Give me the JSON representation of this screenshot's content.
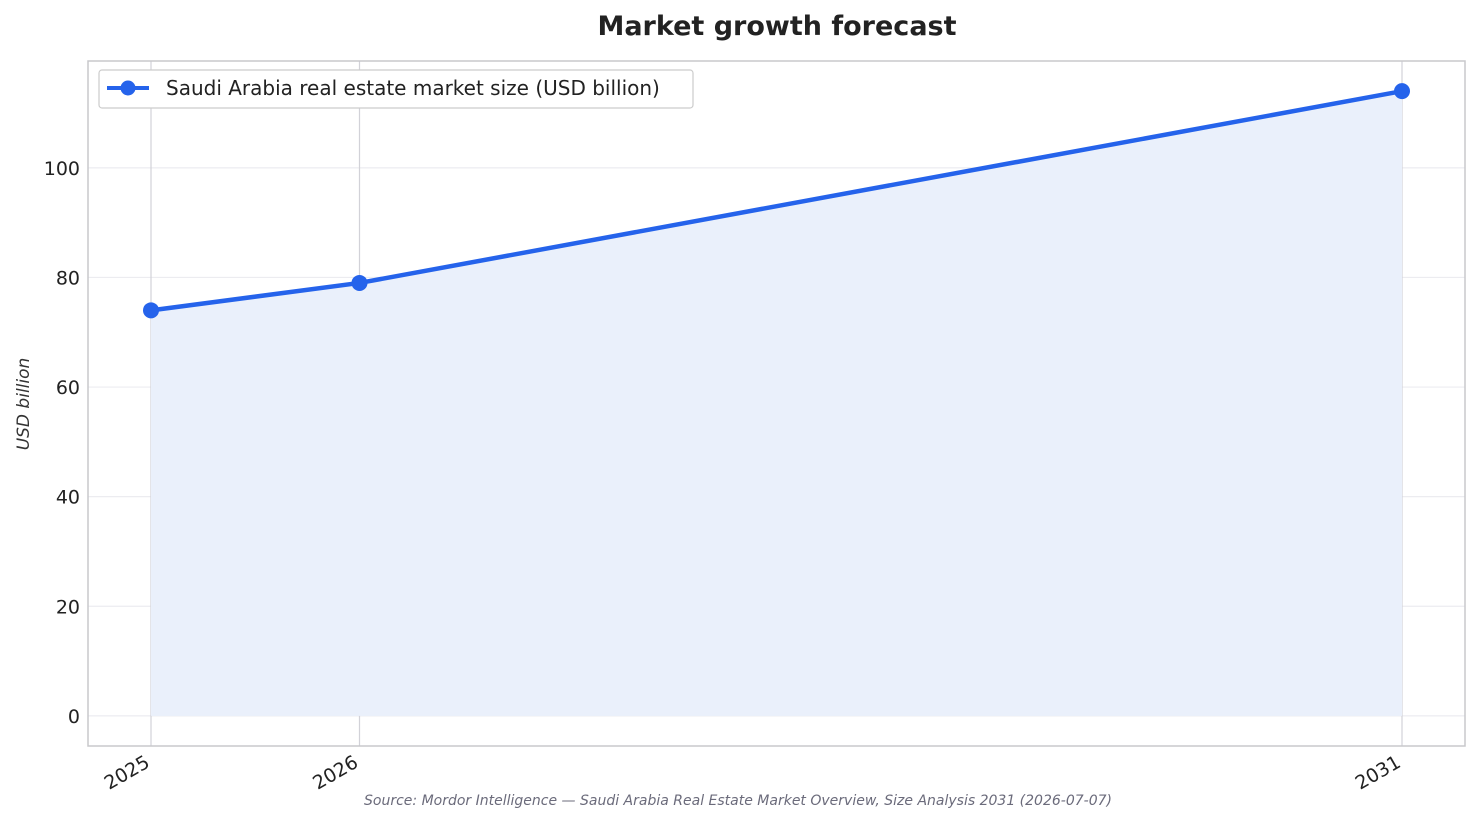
{
  "chart_data": {
    "type": "area",
    "title": "Market growth forecast",
    "xlabel": "",
    "ylabel": "USD billion",
    "categories": [
      "2025",
      "2026",
      "2031"
    ],
    "series": [
      {
        "name": "Saudi Arabia real estate market size (USD billion)",
        "values": [
          74,
          79,
          114
        ],
        "color": "#2563eb"
      }
    ],
    "ylim": [
      -5.5,
      119.5
    ],
    "yticks": [
      0,
      20,
      40,
      60,
      80,
      100
    ],
    "grid": true,
    "legend_position": "top-left",
    "fill_color": "#eaf0fb",
    "source": "Source: Mordor Intelligence — Saudi Arabia Real Estate Market Overview, Size Analysis 2031 (2026-07-07)"
  }
}
